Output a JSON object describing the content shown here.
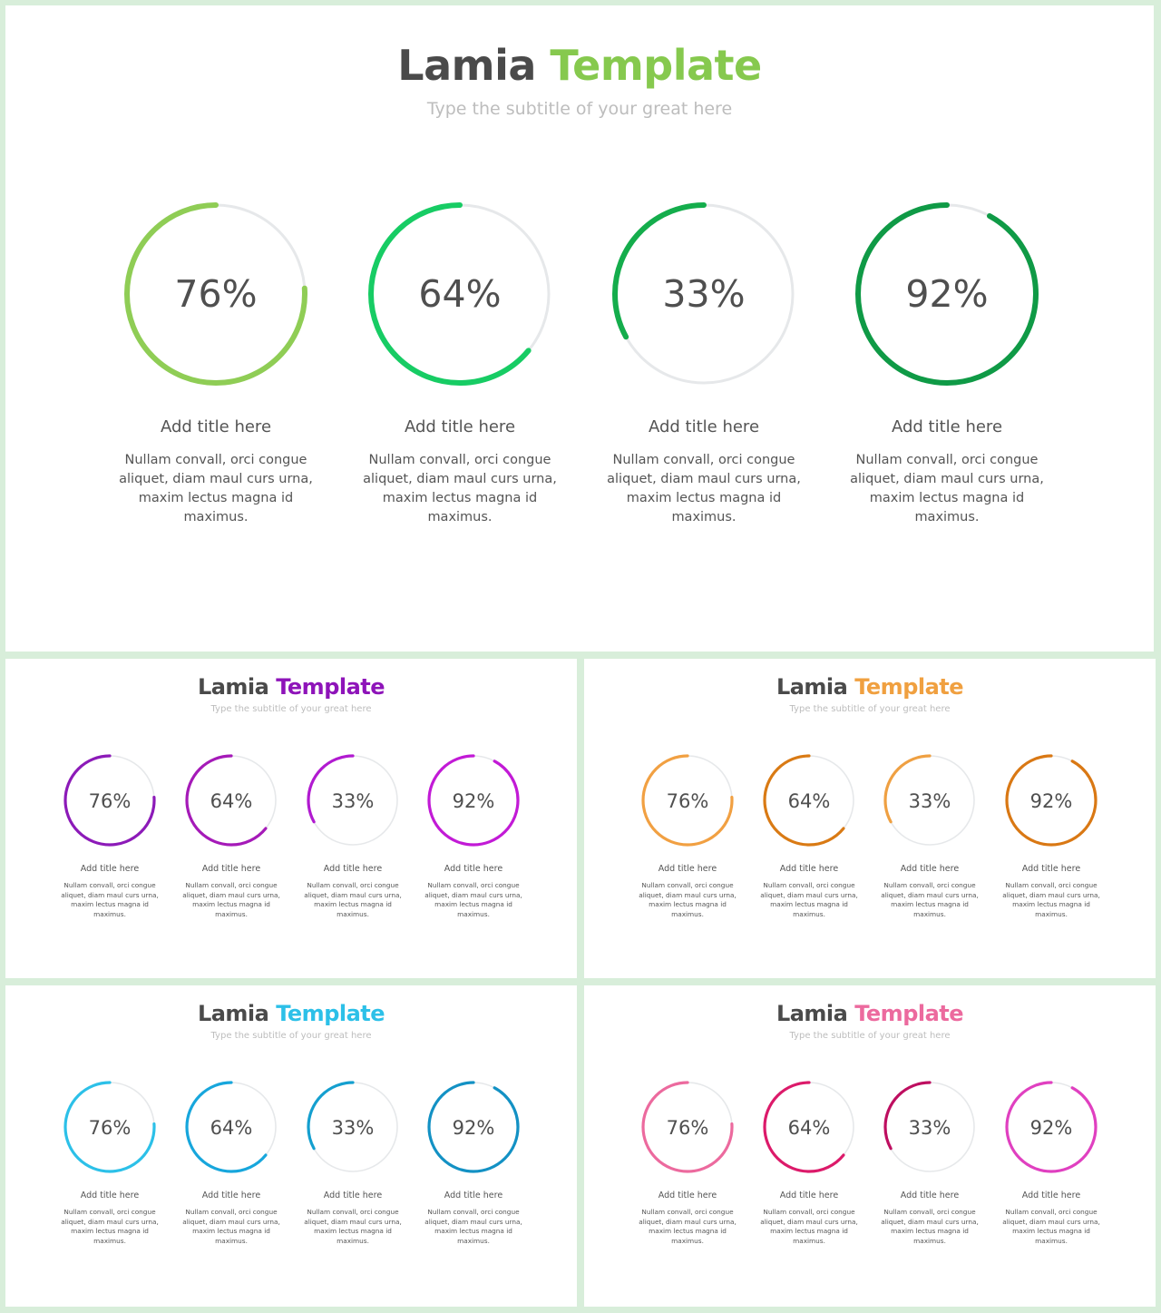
{
  "slides": [
    {
      "id": "main",
      "title_main": "Lamia",
      "title_accent": "Template",
      "accent": "#86c94e",
      "subtitle": "Type the subtitle of your great here",
      "items": [
        {
          "percent": 76,
          "label": "76%",
          "color": "#8fcd55",
          "title": "Add title here",
          "desc": "Nullam convall, orci congue aliquet, diam maul curs urna, maxim  lectus magna id maximus."
        },
        {
          "percent": 64,
          "label": "64%",
          "color": "#17cc64",
          "title": "Add title here",
          "desc": "Nullam convall, orci congue aliquet, diam maul curs urna, maxim  lectus magna id maximus."
        },
        {
          "percent": 33,
          "label": "33%",
          "color": "#14ad4c",
          "title": "Add title here",
          "desc": "Nullam convall, orci congue aliquet, diam maul curs urna, maxim  lectus magna id maximus."
        },
        {
          "percent": 92,
          "label": "92%",
          "color": "#0f9a46",
          "title": "Add title here",
          "desc": "Nullam convall, orci congue aliquet, diam maul curs urna, maxim  lectus magna id maximus."
        }
      ]
    },
    {
      "id": "purple",
      "title_main": "Lamia",
      "title_accent": "Template",
      "accent": "#8e14b9",
      "subtitle": "Type the subtitle of your great here",
      "items": [
        {
          "percent": 76,
          "label": "76%",
          "color": "#8c1ab8",
          "title": "Add title here",
          "desc": "Nullam convall, orci congue aliquet, diam maul curs urna, maxim  lectus magna id maximus."
        },
        {
          "percent": 64,
          "label": "64%",
          "color": "#a51ab8",
          "title": "Add title here",
          "desc": "Nullam convall, orci congue aliquet, diam maul curs urna, maxim  lectus magna id maximus."
        },
        {
          "percent": 33,
          "label": "33%",
          "color": "#b11ad0",
          "title": "Add title here",
          "desc": "Nullam convall, orci congue aliquet, diam maul curs urna, maxim  lectus magna id maximus."
        },
        {
          "percent": 92,
          "label": "92%",
          "color": "#c21ad6",
          "title": "Add title here",
          "desc": "Nullam convall, orci congue aliquet, diam maul curs urna, maxim  lectus magna id maximus."
        }
      ]
    },
    {
      "id": "orange",
      "title_main": "Lamia",
      "title_accent": "Template",
      "accent": "#f0a040",
      "subtitle": "Type the subtitle of your great here",
      "items": [
        {
          "percent": 76,
          "label": "76%",
          "color": "#f1a042",
          "title": "Add title here",
          "desc": "Nullam convall, orci congue aliquet, diam maul curs urna, maxim  lectus magna id maximus."
        },
        {
          "percent": 64,
          "label": "64%",
          "color": "#d97a14",
          "title": "Add title here",
          "desc": "Nullam convall, orci congue aliquet, diam maul curs urna, maxim  lectus magna id maximus."
        },
        {
          "percent": 33,
          "label": "33%",
          "color": "#efa042",
          "title": "Add title here",
          "desc": "Nullam convall, orci congue aliquet, diam maul curs urna, maxim  lectus magna id maximus."
        },
        {
          "percent": 92,
          "label": "92%",
          "color": "#d97814",
          "title": "Add title here",
          "desc": "Nullam convall, orci congue aliquet, diam maul curs urna, maxim  lectus magna id maximus."
        }
      ]
    },
    {
      "id": "blue",
      "title_main": "Lamia",
      "title_accent": "Template",
      "accent": "#2cc0e8",
      "subtitle": "Type the subtitle of your great here",
      "items": [
        {
          "percent": 76,
          "label": "76%",
          "color": "#2cc0e8",
          "title": "Add title here",
          "desc": "Nullam convall, orci congue aliquet, diam maul curs urna, maxim  lectus magna id maximus."
        },
        {
          "percent": 64,
          "label": "64%",
          "color": "#17a6dc",
          "title": "Add title here",
          "desc": "Nullam convall, orci congue aliquet, diam maul curs urna, maxim  lectus magna id maximus."
        },
        {
          "percent": 33,
          "label": "33%",
          "color": "#149fcf",
          "title": "Add title here",
          "desc": "Nullam convall, orci congue aliquet, diam maul curs urna, maxim  lectus magna id maximus."
        },
        {
          "percent": 92,
          "label": "92%",
          "color": "#1391c4",
          "title": "Add title here",
          "desc": "Nullam convall, orci congue aliquet, diam maul curs urna, maxim  lectus magna id maximus."
        }
      ]
    },
    {
      "id": "pink",
      "title_main": "Lamia",
      "title_accent": "Template",
      "accent": "#ec6a9e",
      "subtitle": "Type the subtitle of your great here",
      "items": [
        {
          "percent": 76,
          "label": "76%",
          "color": "#ec6a9e",
          "title": "Add title here",
          "desc": "Nullam convall, orci congue aliquet, diam maul curs urna, maxim  lectus magna id maximus."
        },
        {
          "percent": 64,
          "label": "64%",
          "color": "#dc1a6a",
          "title": "Add title here",
          "desc": "Nullam convall, orci congue aliquet, diam maul curs urna, maxim  lectus magna id maximus."
        },
        {
          "percent": 33,
          "label": "33%",
          "color": "#be0e60",
          "title": "Add title here",
          "desc": "Nullam convall, orci congue aliquet, diam maul curs urna, maxim  lectus magna id maximus."
        },
        {
          "percent": 92,
          "label": "92%",
          "color": "#e040c0",
          "title": "Add title here",
          "desc": "Nullam convall, orci congue aliquet, diam maul curs urna, maxim  lectus magna id maximus."
        }
      ]
    }
  ],
  "track_color": "#e6e8ea"
}
